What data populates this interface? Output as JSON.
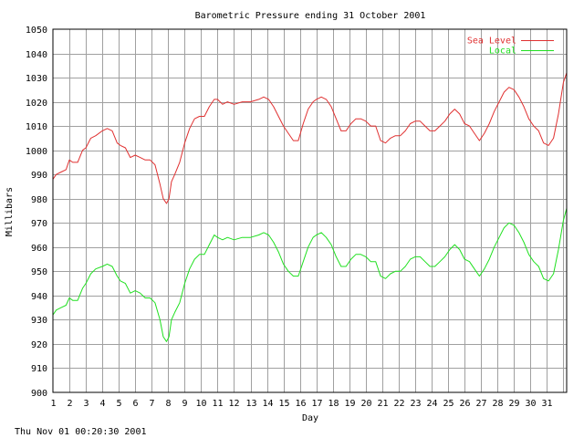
{
  "chart_data": {
    "type": "line",
    "title": "Barometric Pressure ending 31 October 2001",
    "xlabel": "Day",
    "ylabel": "Millibars",
    "footer": "Thu Nov 01 00:20:30 2001",
    "ylim": [
      900,
      1050
    ],
    "xlim": [
      1,
      32.2
    ],
    "y_ticks": [
      "900",
      "910",
      "920",
      "930",
      "940",
      "950",
      "960",
      "970",
      "980",
      "990",
      "1000",
      "1010",
      "1020",
      "1030",
      "1040",
      "1050"
    ],
    "x_ticks": [
      "1",
      "2",
      "3",
      "4",
      "5",
      "6",
      "7",
      "8",
      "9",
      "10",
      "11",
      "12",
      "13",
      "14",
      "15",
      "16",
      "17",
      "18",
      "19",
      "20",
      "21",
      "22",
      "23",
      "24",
      "25",
      "26",
      "27",
      "28",
      "29",
      "30",
      "31"
    ],
    "grid": true,
    "legend_position": "top-right",
    "series": [
      {
        "name": "Sea Level",
        "color": "#e03030",
        "x": [
          1.0,
          1.2,
          1.5,
          1.8,
          2.0,
          2.2,
          2.5,
          2.8,
          3.0,
          3.3,
          3.6,
          4.0,
          4.3,
          4.6,
          4.9,
          5.1,
          5.4,
          5.7,
          6.0,
          6.3,
          6.6,
          6.9,
          7.2,
          7.5,
          7.7,
          7.9,
          8.05,
          8.2,
          8.4,
          8.7,
          9.0,
          9.3,
          9.6,
          9.9,
          10.2,
          10.5,
          10.8,
          11.0,
          11.3,
          11.6,
          12.0,
          12.5,
          13.0,
          13.5,
          13.8,
          14.1,
          14.4,
          14.7,
          15.0,
          15.3,
          15.6,
          15.9,
          16.2,
          16.5,
          16.8,
          17.0,
          17.3,
          17.6,
          17.9,
          18.2,
          18.5,
          18.8,
          19.1,
          19.4,
          19.7,
          20.0,
          20.3,
          20.6,
          20.9,
          21.2,
          21.5,
          21.8,
          22.1,
          22.4,
          22.7,
          23.0,
          23.3,
          23.6,
          23.9,
          24.2,
          24.5,
          24.8,
          25.1,
          25.4,
          25.7,
          26.0,
          26.3,
          26.6,
          26.9,
          27.2,
          27.5,
          27.8,
          28.1,
          28.4,
          28.7,
          29.0,
          29.3,
          29.6,
          29.9,
          30.2,
          30.5,
          30.8,
          31.1,
          31.4,
          31.7,
          32.0,
          32.2
        ],
        "values": [
          988,
          990,
          991,
          992,
          996,
          995,
          995,
          1000,
          1001,
          1005,
          1006,
          1008,
          1009,
          1008,
          1003,
          1002,
          1001,
          997,
          998,
          997,
          996,
          996,
          994,
          986,
          980,
          978,
          980,
          987,
          990,
          995,
          1003,
          1009,
          1013,
          1014,
          1014,
          1018,
          1021,
          1021,
          1019,
          1020,
          1019,
          1020,
          1020,
          1021,
          1022,
          1021,
          1018,
          1014,
          1010,
          1007,
          1004,
          1004,
          1011,
          1017,
          1020,
          1021,
          1022,
          1021,
          1018,
          1013,
          1008,
          1008,
          1011,
          1013,
          1013,
          1012,
          1010,
          1010,
          1004,
          1003,
          1005,
          1006,
          1006,
          1008,
          1011,
          1012,
          1012,
          1010,
          1008,
          1008,
          1010,
          1012,
          1015,
          1017,
          1015,
          1011,
          1010,
          1007,
          1004,
          1007,
          1011,
          1016,
          1020,
          1024,
          1026,
          1025,
          1022,
          1018,
          1013,
          1010,
          1008,
          1003,
          1002,
          1005,
          1015,
          1028,
          1032
        ]
      },
      {
        "name": "Local",
        "color": "#20e020",
        "x": [
          1.0,
          1.2,
          1.5,
          1.8,
          2.0,
          2.2,
          2.5,
          2.8,
          3.0,
          3.3,
          3.6,
          4.0,
          4.3,
          4.6,
          4.9,
          5.1,
          5.4,
          5.7,
          6.0,
          6.3,
          6.6,
          6.9,
          7.2,
          7.5,
          7.7,
          7.9,
          8.05,
          8.2,
          8.4,
          8.7,
          9.0,
          9.3,
          9.6,
          9.9,
          10.2,
          10.5,
          10.8,
          11.0,
          11.3,
          11.6,
          12.0,
          12.5,
          13.0,
          13.5,
          13.8,
          14.1,
          14.4,
          14.7,
          15.0,
          15.3,
          15.6,
          15.9,
          16.2,
          16.5,
          16.8,
          17.0,
          17.3,
          17.6,
          17.9,
          18.2,
          18.5,
          18.8,
          19.1,
          19.4,
          19.7,
          20.0,
          20.3,
          20.6,
          20.9,
          21.2,
          21.5,
          21.8,
          22.1,
          22.4,
          22.7,
          23.0,
          23.3,
          23.6,
          23.9,
          24.2,
          24.5,
          24.8,
          25.1,
          25.4,
          25.7,
          26.0,
          26.3,
          26.6,
          26.9,
          27.2,
          27.5,
          27.8,
          28.1,
          28.4,
          28.7,
          29.0,
          29.3,
          29.6,
          29.9,
          30.2,
          30.5,
          30.8,
          31.1,
          31.4,
          31.7,
          32.0,
          32.2
        ],
        "values": [
          932,
          934,
          935,
          936,
          939,
          938,
          938,
          943,
          945,
          949,
          951,
          952,
          953,
          952,
          948,
          946,
          945,
          941,
          942,
          941,
          939,
          939,
          937,
          930,
          923,
          921,
          923,
          930,
          933,
          937,
          945,
          951,
          955,
          957,
          957,
          961,
          965,
          964,
          963,
          964,
          963,
          964,
          964,
          965,
          966,
          965,
          962,
          958,
          953,
          950,
          948,
          948,
          954,
          960,
          964,
          965,
          966,
          964,
          961,
          956,
          952,
          952,
          955,
          957,
          957,
          956,
          954,
          954,
          948,
          947,
          949,
          950,
          950,
          952,
          955,
          956,
          956,
          954,
          952,
          952,
          954,
          956,
          959,
          961,
          959,
          955,
          954,
          951,
          948,
          951,
          955,
          960,
          964,
          968,
          970,
          969,
          966,
          962,
          957,
          954,
          952,
          947,
          946,
          949,
          959,
          971,
          976
        ]
      }
    ]
  }
}
